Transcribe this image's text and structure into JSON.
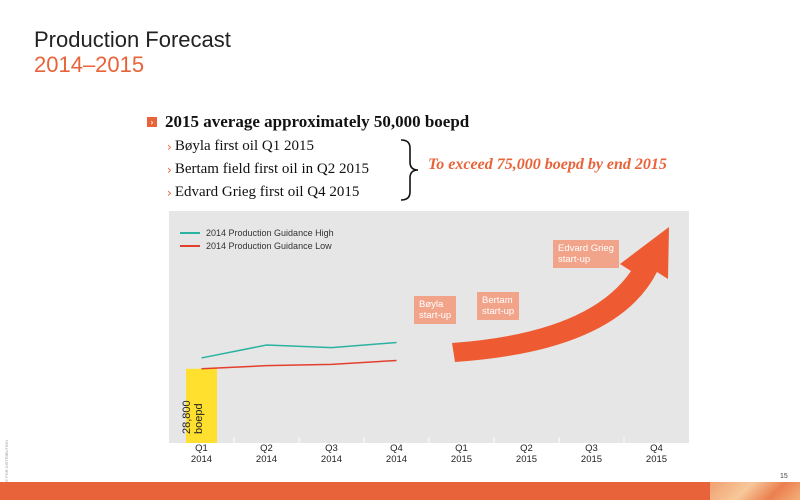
{
  "header": {
    "title": "Production Forecast",
    "subtitle": "2014–2015"
  },
  "bullets": {
    "main": "2015 average approximately 50,000 boepd",
    "items": [
      "Bøyla first oil Q1 2015",
      "Bertam field first oil in Q2 2015",
      "Edvard Grieg first oil Q4 2015"
    ],
    "summary": "To exceed 75,000 boepd by end 2015"
  },
  "colors": {
    "accent": "#e8633a",
    "guidance_high": "#2ab3a0",
    "guidance_low": "#e2402e",
    "bar": "#ffe02e",
    "plot_bg": "#e6e6e6"
  },
  "chart_data": {
    "type": "line",
    "categories": [
      "Q1 2014",
      "Q2 2014",
      "Q3 2014",
      "Q4 2014",
      "Q1 2015",
      "Q2 2015",
      "Q3 2015",
      "Q4 2015"
    ],
    "tick_labels": [
      [
        "Q1",
        "2014"
      ],
      [
        "Q2",
        "2014"
      ],
      [
        "Q3",
        "2014"
      ],
      [
        "Q4",
        "2014"
      ],
      [
        "Q1",
        "2015"
      ],
      [
        "Q2",
        "2015"
      ],
      [
        "Q3",
        "2015"
      ],
      [
        "Q4",
        "2015"
      ]
    ],
    "series": [
      {
        "name": "2014 Production Guidance High",
        "values": [
          33,
          38,
          37,
          39,
          null,
          null,
          null,
          null
        ]
      },
      {
        "name": "2014 Production Guidance Low",
        "values": [
          28.8,
          30,
          30.5,
          32,
          null,
          null,
          null,
          null
        ]
      }
    ],
    "bar": {
      "category": "Q1 2014",
      "value": 28.8,
      "label": "28,800 boepd"
    },
    "ylim": [
      0,
      90
    ],
    "grid": true,
    "legend": "top-left",
    "annotations": [
      {
        "text": [
          "Bøyla",
          "start-up"
        ],
        "at": "Q1 2015"
      },
      {
        "text": [
          "Bertam",
          "start-up"
        ],
        "at": "Q2 2015"
      },
      {
        "text": [
          "Edvard Grieg",
          "start-up"
        ],
        "at": "Q4 2015"
      }
    ]
  },
  "footer": {
    "page_number": "15",
    "side_note": "NOT FOR DISTRIBUTION"
  }
}
